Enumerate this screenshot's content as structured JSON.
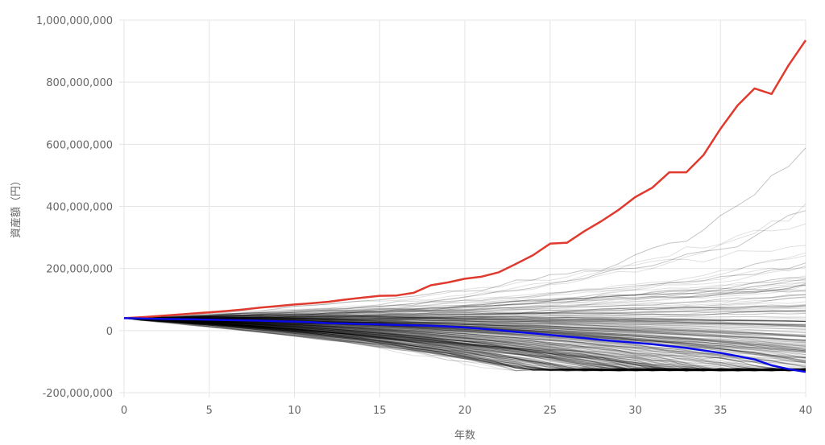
{
  "chart_data": {
    "type": "line",
    "title": "",
    "xlabel": "年数",
    "ylabel": "資産額（円）",
    "xlim": [
      0,
      40
    ],
    "ylim": [
      -200000000,
      1000000000
    ],
    "x_ticks": [
      "0",
      "5",
      "10",
      "15",
      "20",
      "25",
      "30",
      "35",
      "40"
    ],
    "y_ticks": [
      "-200,000,000",
      "0",
      "200,000,000",
      "400,000,000",
      "600,000,000",
      "800,000,000",
      "1,000,000,000"
    ],
    "grid": true,
    "legend": "none",
    "colors": {
      "max": "#e03a2e",
      "min": "#0a0ae8",
      "sims": "#000000",
      "grid": "#e5e5e5"
    },
    "x": [
      0,
      1,
      2,
      3,
      4,
      5,
      6,
      7,
      8,
      9,
      10,
      11,
      12,
      13,
      14,
      15,
      16,
      17,
      18,
      19,
      20,
      21,
      22,
      23,
      24,
      25,
      26,
      27,
      28,
      29,
      30,
      31,
      32,
      33,
      34,
      35,
      36,
      37,
      38,
      39,
      40
    ],
    "series": [
      {
        "role": "max",
        "values": [
          40000000,
          43000000,
          47000000,
          51000000,
          55000000,
          59000000,
          63000000,
          68000000,
          74000000,
          79000000,
          84000000,
          88000000,
          93000000,
          100000000,
          106000000,
          112000000,
          113000000,
          122000000,
          146000000,
          155000000,
          167000000,
          174000000,
          188000000,
          215000000,
          243000000,
          280000000,
          283000000,
          320000000,
          352000000,
          388000000,
          430000000,
          460000000,
          510000000,
          510000000,
          565000000,
          650000000,
          725000000,
          780000000,
          762000000,
          855000000,
          935000000
        ]
      },
      {
        "role": "min",
        "values": [
          40000000,
          39000000,
          38000000,
          37000000,
          36000000,
          35000000,
          34000000,
          33000000,
          32000000,
          30000000,
          29000000,
          27000000,
          24000000,
          23000000,
          21000000,
          20000000,
          18000000,
          17000000,
          16000000,
          13000000,
          10000000,
          6000000,
          1000000,
          -4000000,
          -9000000,
          -14000000,
          -19000000,
          -24000000,
          -30000000,
          -35000000,
          -39000000,
          -44000000,
          -50000000,
          -56000000,
          -64000000,
          -72000000,
          -82000000,
          -93000000,
          -112000000,
          -124000000,
          -133000000
        ]
      }
    ],
    "simulations": {
      "count": 400,
      "start": 40000000,
      "note_end_range": [
        -130000000,
        890000000
      ]
    }
  }
}
